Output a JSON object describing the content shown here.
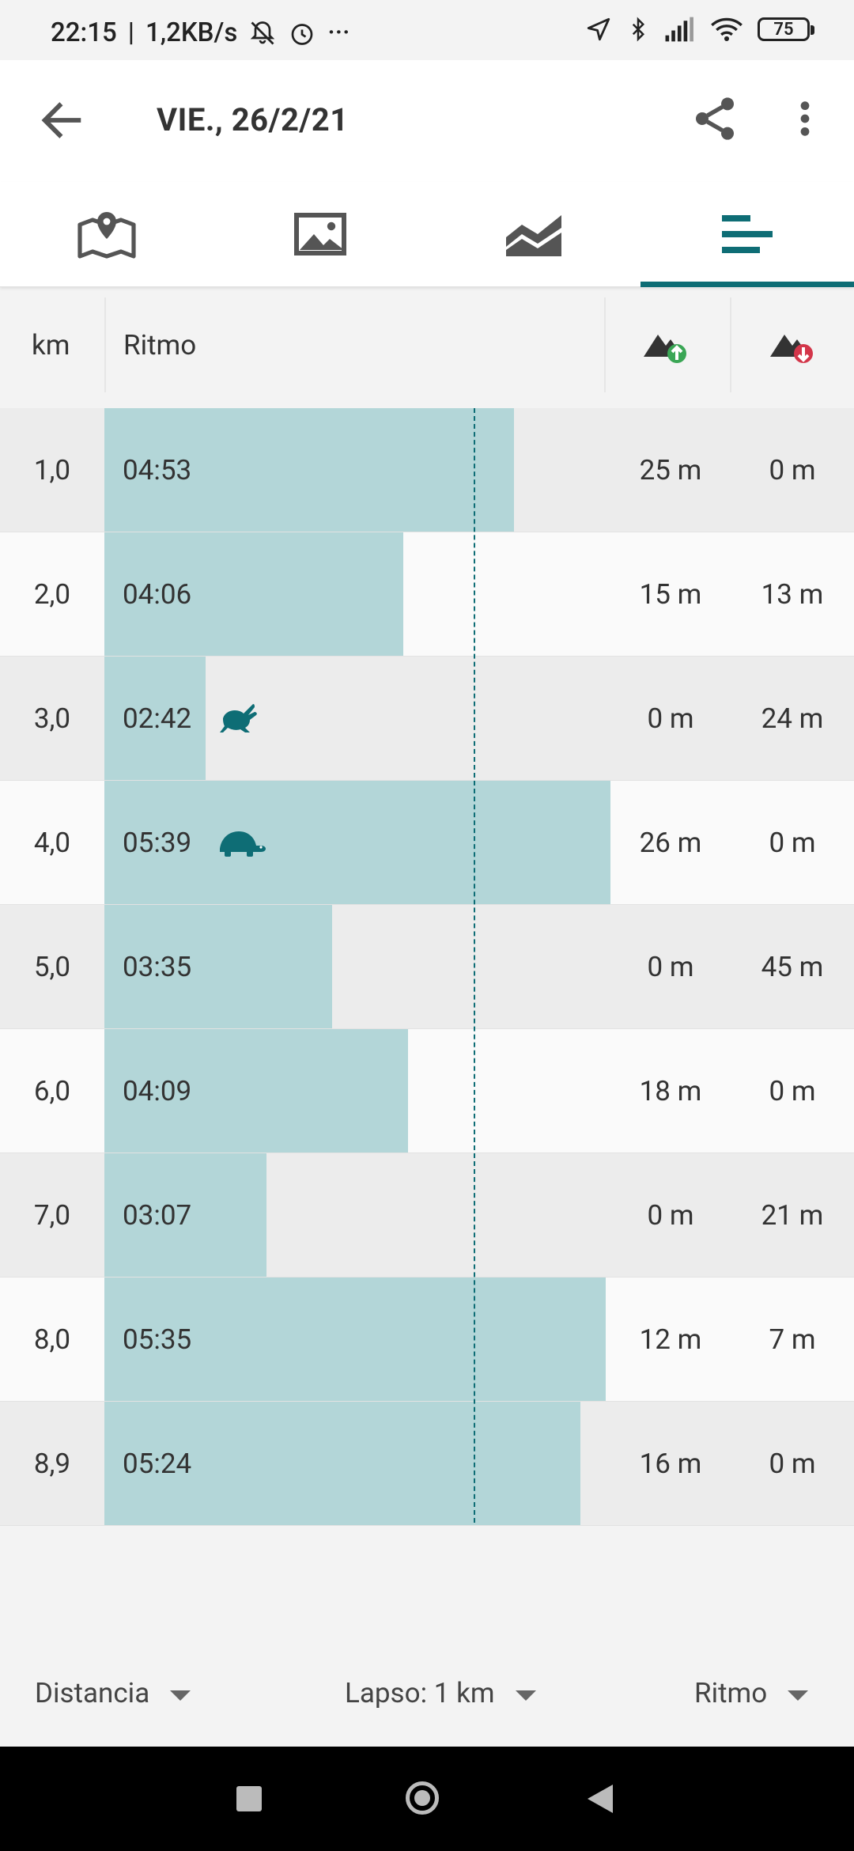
{
  "status_bar": {
    "time": "22:15",
    "speed": "1,2KB/s",
    "more_dots": "···",
    "battery": "75"
  },
  "app_bar": {
    "title": "VIE., 26/2/21"
  },
  "tabs": [
    {
      "icon": "map-icon",
      "active": false
    },
    {
      "icon": "image-icon",
      "active": false
    },
    {
      "icon": "chart-icon",
      "active": false
    },
    {
      "icon": "splits-icon",
      "active": true
    }
  ],
  "table": {
    "headers": {
      "km": "km",
      "pace": "Ritmo",
      "ascent_icon": "ascent-icon",
      "descent_icon": "descent-icon"
    },
    "rows": [
      {
        "km": "1,0",
        "pace": "04:53",
        "pace_fraction": 0.81,
        "ascent": "25 m",
        "descent": "0 m",
        "animal": ""
      },
      {
        "km": "2,0",
        "pace": "04:06",
        "pace_fraction": 0.59,
        "ascent": "15 m",
        "descent": "13 m",
        "animal": ""
      },
      {
        "km": "3,0",
        "pace": "02:42",
        "pace_fraction": 0.2,
        "ascent": "0 m",
        "descent": "24 m",
        "animal": "rabbit"
      },
      {
        "km": "4,0",
        "pace": "05:39",
        "pace_fraction": 1.0,
        "ascent": "26 m",
        "descent": "0 m",
        "animal": "turtle"
      },
      {
        "km": "5,0",
        "pace": "03:35",
        "pace_fraction": 0.45,
        "ascent": "0 m",
        "descent": "45 m",
        "animal": ""
      },
      {
        "km": "6,0",
        "pace": "04:09",
        "pace_fraction": 0.6,
        "ascent": "18 m",
        "descent": "0 m",
        "animal": ""
      },
      {
        "km": "7,0",
        "pace": "03:07",
        "pace_fraction": 0.32,
        "ascent": "0 m",
        "descent": "21 m",
        "animal": ""
      },
      {
        "km": "8,0",
        "pace": "05:35",
        "pace_fraction": 0.99,
        "ascent": "12 m",
        "descent": "7 m",
        "animal": ""
      },
      {
        "km": "8,9",
        "pace": "05:24",
        "pace_fraction": 0.94,
        "ascent": "16 m",
        "descent": "0 m",
        "animal": ""
      }
    ],
    "average_pace_fraction": 0.73
  },
  "footer": {
    "x_axis": "Distancia",
    "lap": "Lapso: 1 km",
    "metric": "Ritmo"
  },
  "colors": {
    "accent": "#0e6d75",
    "bar": "#b3d6d8",
    "ascent": "#3aa655",
    "descent": "#d3364a"
  }
}
